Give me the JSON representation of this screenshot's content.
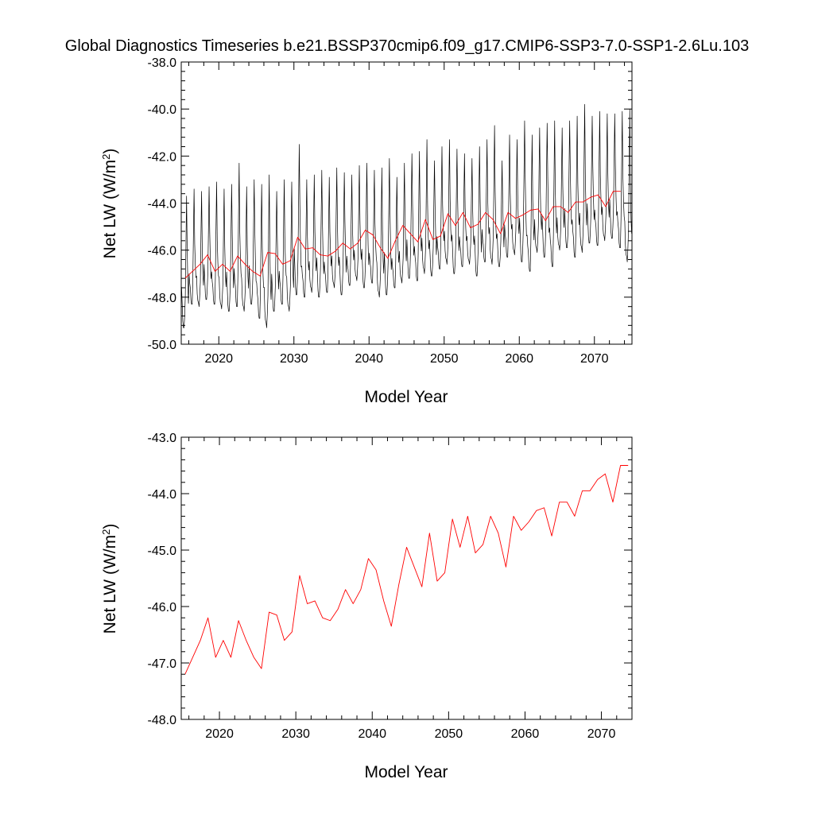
{
  "title": "Global Diagnostics Timeseries b.e21.BSSP370cmip6.f09_g17.CMIP6-SSP3-7.0-SSP1-2.6Lu.103",
  "colors": {
    "monthly": "#000000",
    "annual": "#ff0000",
    "axis": "#000000"
  },
  "chart_data": [
    {
      "type": "line",
      "id": "top",
      "xlabel": "Model Year",
      "ylabel": "Net LW (W/m2)",
      "ylabel_main": "Net LW (W/m",
      "ylabel_sup": "2",
      "ylabel_close": ")",
      "xlim": [
        2015,
        2075
      ],
      "ylim": [
        -50.0,
        -38.0
      ],
      "xticks": [
        2020,
        2030,
        2040,
        2050,
        2060,
        2070
      ],
      "xtick_labels": [
        "2020",
        "2030",
        "2040",
        "2050",
        "2060",
        "2070"
      ],
      "yticks": [
        -50.0,
        -48.0,
        -46.0,
        -44.0,
        -42.0,
        -40.0,
        -38.0
      ],
      "ytick_labels": [
        "-50.0",
        "-48.0",
        "-46.0",
        "-44.0",
        "-42.0",
        "-40.0",
        "-38.0"
      ],
      "series": [
        {
          "name": "monthly",
          "description": "Monthly global mean Net LW; annual cycle with peak near the given max and trough near the given min each year",
          "x_start": 2015.0417,
          "step": 0.0833333,
          "annual_max": [
            -43.7,
            -43.4,
            -43.5,
            -43.3,
            -43.1,
            -43.4,
            -43.2,
            -42.3,
            -43.3,
            -43.0,
            -43.2,
            -42.8,
            -43.5,
            -43.0,
            -43.1,
            -41.5,
            -43.0,
            -42.8,
            -42.6,
            -42.9,
            -42.5,
            -42.7,
            -42.8,
            -42.4,
            -42.3,
            -42.6,
            -42.5,
            -42.1,
            -42.9,
            -42.3,
            -41.9,
            -41.8,
            -41.3,
            -42.2,
            -41.6,
            -41.3,
            -41.7,
            -41.9,
            -42.1,
            -41.6,
            -41.3,
            -40.7,
            -42.2,
            -41.1,
            -41.3,
            -40.5,
            -41.1,
            -40.8,
            -40.6,
            -40.5,
            -40.8,
            -40.5,
            -40.3,
            -39.8,
            -40.3,
            -40.1,
            -40.2,
            -40.2,
            -40.1,
            -40.0
          ],
          "annual_min": [
            -49.3,
            -48.3,
            -48.4,
            -48.1,
            -48.3,
            -48.5,
            -48.6,
            -48.4,
            -48.6,
            -48.3,
            -48.9,
            -49.3,
            -48.6,
            -48.3,
            -48.6,
            -47.9,
            -48.0,
            -47.8,
            -48.0,
            -47.8,
            -47.6,
            -47.9,
            -47.5,
            -47.3,
            -47.6,
            -47.4,
            -48.0,
            -47.9,
            -47.6,
            -47.4,
            -47.2,
            -47.3,
            -47.0,
            -47.1,
            -46.8,
            -46.6,
            -47.0,
            -46.7,
            -46.6,
            -47.1,
            -46.5,
            -46.6,
            -46.7,
            -46.3,
            -46.2,
            -46.5,
            -46.9,
            -46.1,
            -46.3,
            -46.7,
            -46.0,
            -45.9,
            -46.3,
            -46.1,
            -45.7,
            -45.8,
            -45.6,
            -45.5,
            -45.9,
            -46.5
          ]
        },
        {
          "name": "annual",
          "description": "Annual mean Net LW",
          "x": [
            2015.5,
            2016.5,
            2017.5,
            2018.5,
            2019.5,
            2020.5,
            2021.5,
            2022.5,
            2023.5,
            2024.5,
            2025.5,
            2026.5,
            2027.5,
            2028.5,
            2029.5,
            2030.5,
            2031.5,
            2032.5,
            2033.5,
            2034.5,
            2035.5,
            2036.5,
            2037.5,
            2038.5,
            2039.5,
            2040.5,
            2041.5,
            2042.5,
            2043.5,
            2044.5,
            2045.5,
            2046.5,
            2047.5,
            2048.5,
            2049.5,
            2050.5,
            2051.5,
            2052.5,
            2053.5,
            2054.5,
            2055.5,
            2056.5,
            2057.5,
            2058.5,
            2059.5,
            2060.5,
            2061.5,
            2062.5,
            2063.5,
            2064.5,
            2065.5,
            2066.5,
            2067.5,
            2068.5,
            2069.5,
            2070.5,
            2071.5,
            2072.5,
            2073.5
          ],
          "values": [
            -47.2,
            -46.9,
            -46.6,
            -46.2,
            -46.9,
            -46.6,
            -46.9,
            -46.25,
            -46.6,
            -46.9,
            -47.1,
            -46.1,
            -46.15,
            -46.6,
            -46.45,
            -45.45,
            -45.95,
            -45.9,
            -46.2,
            -46.25,
            -46.05,
            -45.7,
            -45.95,
            -45.7,
            -45.15,
            -45.35,
            -45.9,
            -46.35,
            -45.6,
            -44.95,
            -45.3,
            -45.65,
            -44.7,
            -45.55,
            -45.4,
            -44.45,
            -44.95,
            -44.4,
            -45.05,
            -44.9,
            -44.4,
            -44.7,
            -45.3,
            -44.4,
            -44.65,
            -44.5,
            -44.3,
            -44.25,
            -44.75,
            -44.15,
            -44.15,
            -44.4,
            -43.95,
            -43.95,
            -43.75,
            -43.65,
            -44.15,
            -43.5,
            -43.5
          ]
        }
      ]
    },
    {
      "type": "line",
      "id": "bottom",
      "xlabel": "Model Year",
      "ylabel": "Net LW (W/m2)",
      "ylabel_main": "Net LW (W/m",
      "ylabel_sup": "2",
      "ylabel_close": ")",
      "xlim": [
        2015,
        2074
      ],
      "ylim": [
        -48.0,
        -43.0
      ],
      "xticks": [
        2020,
        2030,
        2040,
        2050,
        2060,
        2070
      ],
      "xtick_labels": [
        "2020",
        "2030",
        "2040",
        "2050",
        "2060",
        "2070"
      ],
      "yticks": [
        -48.0,
        -47.0,
        -46.0,
        -45.0,
        -44.0,
        -43.0
      ],
      "ytick_labels": [
        "-48.0",
        "-47.0",
        "-46.0",
        "-45.0",
        "-44.0",
        "-43.0"
      ],
      "series": [
        {
          "name": "annual",
          "x": [
            2015.5,
            2016.5,
            2017.5,
            2018.5,
            2019.5,
            2020.5,
            2021.5,
            2022.5,
            2023.5,
            2024.5,
            2025.5,
            2026.5,
            2027.5,
            2028.5,
            2029.5,
            2030.5,
            2031.5,
            2032.5,
            2033.5,
            2034.5,
            2035.5,
            2036.5,
            2037.5,
            2038.5,
            2039.5,
            2040.5,
            2041.5,
            2042.5,
            2043.5,
            2044.5,
            2045.5,
            2046.5,
            2047.5,
            2048.5,
            2049.5,
            2050.5,
            2051.5,
            2052.5,
            2053.5,
            2054.5,
            2055.5,
            2056.5,
            2057.5,
            2058.5,
            2059.5,
            2060.5,
            2061.5,
            2062.5,
            2063.5,
            2064.5,
            2065.5,
            2066.5,
            2067.5,
            2068.5,
            2069.5,
            2070.5,
            2071.5,
            2072.5,
            2073.5
          ],
          "values": [
            -47.2,
            -46.9,
            -46.6,
            -46.2,
            -46.9,
            -46.6,
            -46.9,
            -46.25,
            -46.6,
            -46.9,
            -47.1,
            -46.1,
            -46.15,
            -46.6,
            -46.45,
            -45.45,
            -45.95,
            -45.9,
            -46.2,
            -46.25,
            -46.05,
            -45.7,
            -45.95,
            -45.7,
            -45.15,
            -45.35,
            -45.9,
            -46.35,
            -45.6,
            -44.95,
            -45.3,
            -45.65,
            -44.7,
            -45.55,
            -45.4,
            -44.45,
            -44.95,
            -44.4,
            -45.05,
            -44.9,
            -44.4,
            -44.7,
            -45.3,
            -44.4,
            -44.65,
            -44.5,
            -44.3,
            -44.25,
            -44.75,
            -44.15,
            -44.15,
            -44.4,
            -43.95,
            -43.95,
            -43.75,
            -43.65,
            -44.15,
            -43.5,
            -43.5
          ]
        }
      ]
    }
  ]
}
